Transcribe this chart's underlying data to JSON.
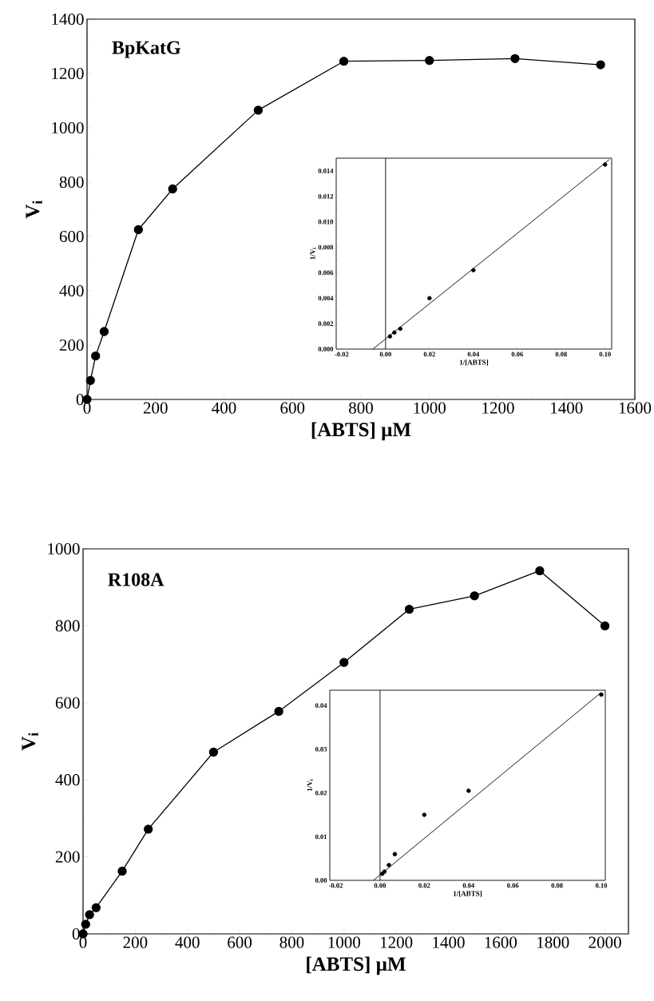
{
  "chart_data": [
    {
      "type": "line",
      "xlabel": "[ABTS] µM",
      "ylabel": "V$_{i}$",
      "annotations": [
        "**BpKatG**"
      ],
      "marker": "circle",
      "line_style": "solid",
      "xlim": [
        0,
        1600
      ],
      "ylim": [
        0,
        1400
      ],
      "xticks": [
        0,
        200,
        400,
        600,
        800,
        1000,
        1200,
        1400,
        1600
      ],
      "yticks": [
        0,
        200,
        400,
        600,
        800,
        1000,
        1200,
        1400
      ],
      "series": [
        {
          "color": "#000000",
          "x": [
            0,
            10,
            25,
            50,
            150,
            250,
            500,
            750,
            1000,
            1250,
            1500
          ],
          "values": [
            0,
            70,
            160,
            250,
            625,
            775,
            1065,
            1245,
            1248,
            1255,
            1232
          ]
        }
      ]
    },
    {
      "type": "scatter",
      "xlabel": "1/[ABTS]",
      "ylabel": "1/V$_{i}$",
      "xlim": [
        -0.0225,
        0.103
      ],
      "ylim": [
        0,
        0.015
      ],
      "xticks": [
        {
          "value": -0.02,
          "label": "-0.02"
        },
        {
          "value": 0,
          "label": "0.00"
        },
        {
          "value": 0.02,
          "label": "0.02"
        },
        {
          "value": 0.04,
          "label": "0.04"
        },
        {
          "value": 0.06,
          "label": "0.06"
        },
        {
          "value": 0.08,
          "label": "0.08"
        },
        {
          "value": 0.1,
          "label": "0.10"
        }
      ],
      "yticks": [
        {
          "value": 0,
          "label": "0.000"
        },
        {
          "value": 0.002,
          "label": "0.002"
        },
        {
          "value": 0.004,
          "label": "0.004"
        },
        {
          "value": 0.006,
          "label": "0.006"
        },
        {
          "value": 0.008,
          "label": "0.008"
        },
        {
          "value": 0.01,
          "label": "0.010"
        },
        {
          "value": 0.012,
          "label": "0.012"
        },
        {
          "value": 0.014,
          "label": "0.014"
        }
      ],
      "ref_lines": [
        {
          "axis": "x",
          "value": 0,
          "color": "#000000"
        }
      ],
      "series": [
        {
          "type": "scatter",
          "marker": "circle",
          "color": "#000000",
          "x": [
            0.002,
            0.004,
            0.0067,
            0.02,
            0.04,
            0.1
          ],
          "values": [
            0.001,
            0.0013,
            0.0016,
            0.004,
            0.0062,
            0.0145
          ]
        },
        {
          "type": "line",
          "marker": "none",
          "color": "#000000",
          "x": [
            -0.0058,
            0.102
          ],
          "values": [
            0,
            0.0149
          ]
        }
      ]
    },
    {
      "type": "line",
      "xlabel": "[ABTS] µM",
      "ylabel": "V$_{i}$",
      "annotations": [
        "**R108A**"
      ],
      "marker": "circle",
      "line_style": "solid",
      "xlim": [
        0,
        2090
      ],
      "ylim": [
        0,
        1000
      ],
      "xticks": [
        0,
        200,
        400,
        600,
        800,
        1000,
        1200,
        1400,
        1600,
        1800,
        2000
      ],
      "yticks": [
        0,
        200,
        400,
        600,
        800,
        1000
      ],
      "series": [
        {
          "color": "#000000",
          "x": [
            0,
            10,
            25,
            50,
            150,
            250,
            500,
            750,
            1000,
            1250,
            1500,
            1750,
            2000
          ],
          "values": [
            0,
            25,
            50,
            68,
            163,
            272,
            472,
            578,
            705,
            843,
            878,
            943,
            800
          ]
        }
      ]
    },
    {
      "type": "scatter",
      "xlabel": "1/[ABTS]",
      "ylabel": "1/V$_{i}$",
      "xlim": [
        -0.0227,
        0.1018
      ],
      "ylim": [
        0,
        0.0435
      ],
      "xticks": [
        {
          "value": -0.02,
          "label": "-0.02"
        },
        {
          "value": 0,
          "label": "0.00"
        },
        {
          "value": 0.02,
          "label": "0.02"
        },
        {
          "value": 0.04,
          "label": "0.04"
        },
        {
          "value": 0.06,
          "label": "0.06"
        },
        {
          "value": 0.08,
          "label": "0.08"
        },
        {
          "value": 0.1,
          "label": "0.10"
        }
      ],
      "yticks": [
        {
          "value": 0,
          "label": "0.00"
        },
        {
          "value": 0.01,
          "label": "0.01"
        },
        {
          "value": 0.02,
          "label": "0.02"
        },
        {
          "value": 0.03,
          "label": "0.03"
        },
        {
          "value": 0.04,
          "label": "0.04"
        }
      ],
      "ref_lines": [
        {
          "axis": "x",
          "value": 0,
          "color": "#000000"
        }
      ],
      "series": [
        {
          "type": "scatter",
          "marker": "circle",
          "color": "#000000",
          "x": [
            0.001,
            0.002,
            0.004,
            0.0067,
            0.02,
            0.04,
            0.1
          ],
          "values": [
            0.0015,
            0.002,
            0.0035,
            0.006,
            0.015,
            0.0205,
            0.0425
          ]
        },
        {
          "type": "line",
          "marker": "none",
          "color": "#000000",
          "x": [
            -0.003,
            0.1
          ],
          "values": [
            0,
            0.043
          ]
        }
      ]
    }
  ]
}
